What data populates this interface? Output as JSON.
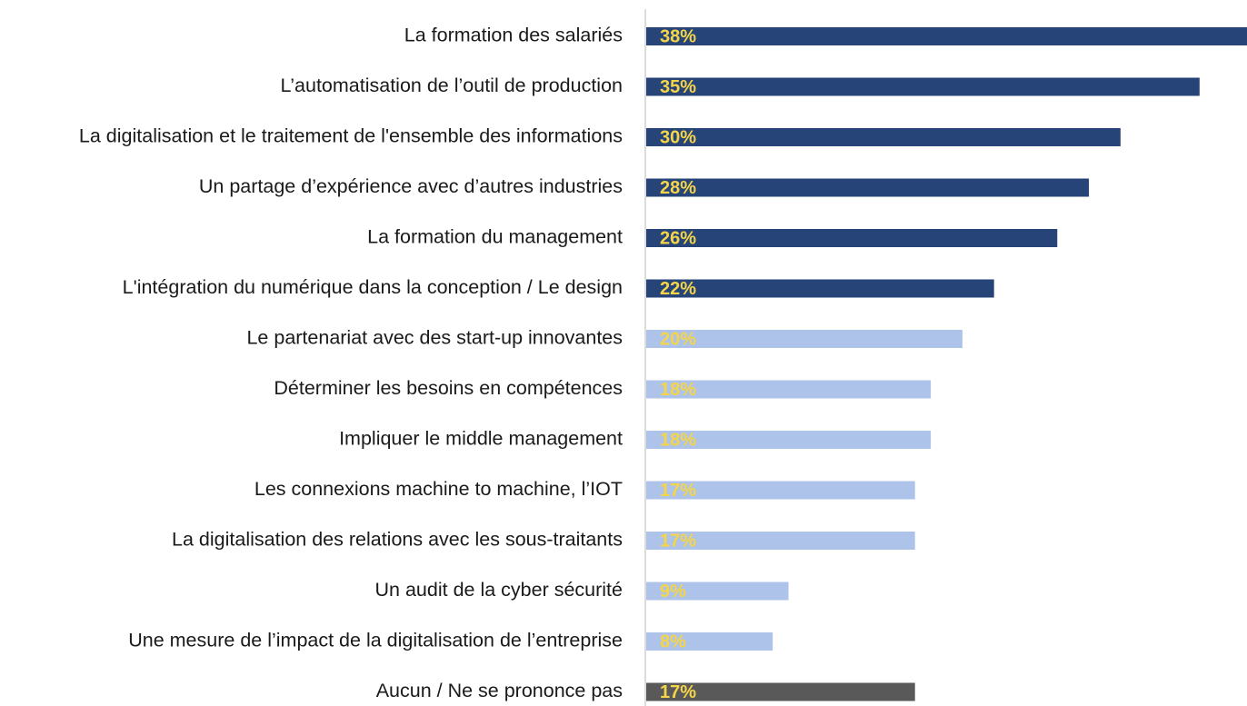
{
  "chart_data": {
    "type": "bar",
    "orientation": "horizontal",
    "categories": [
      "La formation des salariés",
      "L’automatisation de l’outil de production",
      "La digitalisation et le traitement de l'ensemble des informations",
      "Un partage d’expérience avec d’autres industries",
      "La formation du management",
      "L'intégration du numérique dans la conception / Le design",
      "Le partenariat avec des start-up innovantes",
      "Déterminer les besoins en compétences",
      "Impliquer le middle management",
      "Les connexions machine to machine, l’IOT",
      "La digitalisation des relations avec les sous-traitants",
      "Un audit de la cyber sécurité",
      "Une mesure de l’impact de la digitalisation de l’entreprise",
      "Aucun / Ne se prononce pas"
    ],
    "values": [
      38,
      35,
      30,
      28,
      26,
      22,
      20,
      18,
      18,
      17,
      17,
      9,
      8,
      17
    ],
    "value_labels": [
      "38%",
      "35%",
      "30%",
      "28%",
      "26%",
      "22%",
      "20%",
      "18%",
      "18%",
      "17%",
      "17%",
      "9%",
      "8%",
      "17%"
    ],
    "colors": [
      "#264478",
      "#264478",
      "#264478",
      "#264478",
      "#264478",
      "#264478",
      "#adc3e9",
      "#adc3e9",
      "#adc3e9",
      "#adc3e9",
      "#adc3e9",
      "#adc3e9",
      "#adc3e9",
      "#595959"
    ],
    "label_color": "#f5d547"
  }
}
